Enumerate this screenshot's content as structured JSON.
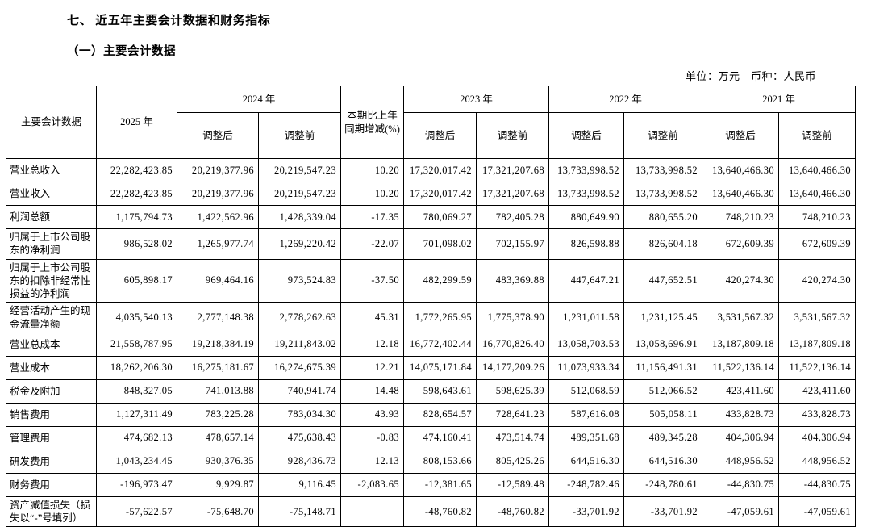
{
  "page": {
    "title": "七、 近五年主要会计数据和财务指标",
    "subtitle": "（一）主要会计数据",
    "unit_note": "单位：万元　币种：人民币"
  },
  "table": {
    "header": {
      "col_label": "主要会计数据",
      "year_2025": "2025 年",
      "year_2024": "2024 年",
      "change_label": "本期比上年同期增减(%)",
      "year_2023": "2023 年",
      "year_2022": "2022 年",
      "year_2021": "2021 年",
      "adjusted_after": "调整后",
      "adjusted_before": "调整前"
    },
    "rows": [
      {
        "label": "营业总收入",
        "values": [
          "22,282,423.85",
          "20,219,377.96",
          "20,219,547.23",
          "10.20",
          "17,320,017.42",
          "17,321,207.68",
          "13,733,998.52",
          "13,733,998.52",
          "13,640,466.30",
          "13,640,466.30"
        ]
      },
      {
        "label": "营业收入",
        "values": [
          "22,282,423.85",
          "20,219,377.96",
          "20,219,547.23",
          "10.20",
          "17,320,017.42",
          "17,321,207.68",
          "13,733,998.52",
          "13,733,998.52",
          "13,640,466.30",
          "13,640,466.30"
        ]
      },
      {
        "label": "利润总额",
        "values": [
          "1,175,794.73",
          "1,422,562.96",
          "1,428,339.04",
          "-17.35",
          "780,069.27",
          "782,405.28",
          "880,649.90",
          "880,655.20",
          "748,210.23",
          "748,210.23"
        ]
      },
      {
        "label": "归属于上市公司股东的净利润",
        "values": [
          "986,528.02",
          "1,265,977.74",
          "1,269,220.42",
          "-22.07",
          "701,098.02",
          "702,155.97",
          "826,598.88",
          "826,604.18",
          "672,609.39",
          "672,609.39"
        ]
      },
      {
        "label": "归属于上市公司股东的扣除非经常性损益的净利润",
        "values": [
          "605,898.17",
          "969,464.16",
          "973,524.83",
          "-37.50",
          "482,299.59",
          "483,369.88",
          "447,647.21",
          "447,652.51",
          "420,274.30",
          "420,274.30"
        ]
      },
      {
        "label": "经营活动产生的现金流量净额",
        "values": [
          "4,035,540.13",
          "2,777,148.38",
          "2,778,262.63",
          "45.31",
          "1,772,265.95",
          "1,775,378.90",
          "1,231,011.58",
          "1,231,125.45",
          "3,531,567.32",
          "3,531,567.32"
        ]
      },
      {
        "label": "营业总成本",
        "values": [
          "21,558,787.95",
          "19,218,384.19",
          "19,211,843.02",
          "12.18",
          "16,772,402.44",
          "16,770,826.40",
          "13,058,703.53",
          "13,058,696.91",
          "13,187,809.18",
          "13,187,809.18"
        ]
      },
      {
        "label": "营业成本",
        "values": [
          "18,262,206.30",
          "16,275,181.67",
          "16,274,675.39",
          "12.21",
          "14,075,171.84",
          "14,177,209.26",
          "11,073,933.34",
          "11,156,491.31",
          "11,522,136.14",
          "11,522,136.14"
        ]
      },
      {
        "label": "税金及附加",
        "values": [
          "848,327.05",
          "741,013.88",
          "740,941.74",
          "14.48",
          "598,643.61",
          "598,625.39",
          "512,068.59",
          "512,066.52",
          "423,411.60",
          "423,411.60"
        ]
      },
      {
        "label": "销售费用",
        "values": [
          "1,127,311.49",
          "783,225.28",
          "783,034.30",
          "43.93",
          "828,654.57",
          "728,641.23",
          "587,616.08",
          "505,058.11",
          "433,828.73",
          "433,828.73"
        ]
      },
      {
        "label": "管理费用",
        "values": [
          "474,682.13",
          "478,657.14",
          "475,638.43",
          "-0.83",
          "474,160.41",
          "473,514.74",
          "489,351.68",
          "489,345.28",
          "404,306.94",
          "404,306.94"
        ]
      },
      {
        "label": "研发费用",
        "values": [
          "1,043,234.45",
          "930,376.35",
          "928,436.73",
          "12.13",
          "808,153.66",
          "805,425.26",
          "644,516.30",
          "644,516.30",
          "448,956.52",
          "448,956.52"
        ]
      },
      {
        "label": "财务费用",
        "values": [
          "-196,973.47",
          "9,929.87",
          "9,116.45",
          "-2,083.65",
          "-12,381.65",
          "-12,589.48",
          "-248,782.46",
          "-248,780.61",
          "-44,830.75",
          "-44,830.75"
        ]
      },
      {
        "label": "资产减值损失（损失以“-”号填列）",
        "values": [
          "-57,622.57",
          "-75,648.70",
          "-75,148.71",
          "",
          "-48,760.82",
          "-48,760.82",
          "-33,701.92",
          "-33,701.92",
          "-47,059.61",
          "-47,059.61"
        ]
      }
    ]
  }
}
